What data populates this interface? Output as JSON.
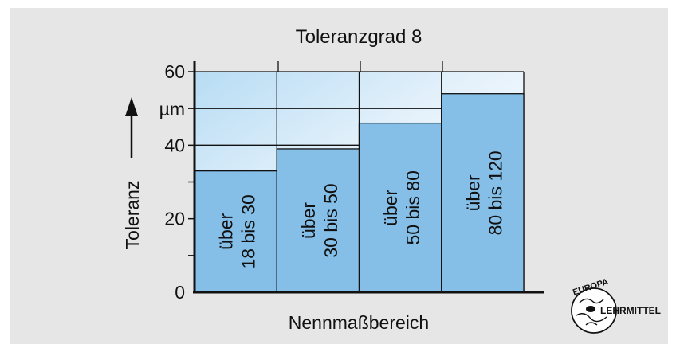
{
  "chart_data": {
    "type": "bar",
    "title": "Toleranzgrad 8",
    "xlabel": "Nennmaßbereich",
    "ylabel": "Toleranz",
    "yunit": "µm",
    "ylim": [
      0,
      60
    ],
    "yticks": [
      "0",
      "20",
      "40",
      "60"
    ],
    "categories": [
      [
        "über",
        "18 bis 30"
      ],
      [
        "über",
        "30 bis 50"
      ],
      [
        "über",
        "50 bis 80"
      ],
      [
        "über",
        "80 bis 120"
      ]
    ],
    "values": [
      33,
      39,
      46,
      54
    ],
    "bar_color": "#85bfe8",
    "background_color": "#e6e6e6"
  },
  "logo": {
    "text_top": "EUROPA",
    "text_bottom": "LEHRMITTEL"
  }
}
